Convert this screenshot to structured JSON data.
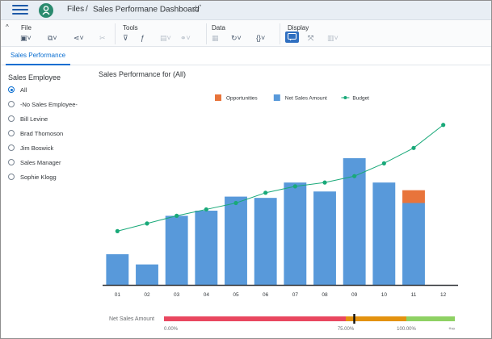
{
  "shell": {
    "breadcrumb_files": "Files",
    "breadcrumb_sep": "/",
    "breadcrumb_doc": "Sales Performane Dashboard",
    "modified_mark": "*"
  },
  "toolbar": {
    "groups": [
      {
        "label": "File"
      },
      {
        "label": "Tools"
      },
      {
        "label": "Data"
      },
      {
        "label": "Display"
      }
    ]
  },
  "tabs": [
    {
      "label": "Sales Performance",
      "active": true
    }
  ],
  "filter": {
    "title": "Sales Employee",
    "options": [
      {
        "label": "All",
        "selected": true
      },
      {
        "label": "-No Sales Employee-",
        "selected": false
      },
      {
        "label": "Bill Levine",
        "selected": false
      },
      {
        "label": "Brad Thomoson",
        "selected": false
      },
      {
        "label": "Jim Boswick",
        "selected": false
      },
      {
        "label": "Sales Manager",
        "selected": false
      },
      {
        "label": "Sophie Klogg",
        "selected": false
      }
    ]
  },
  "chart_data": {
    "type": "bar",
    "title": "Sales Performance for (All)",
    "categories": [
      "01",
      "02",
      "03",
      "04",
      "05",
      "06",
      "07",
      "08",
      "09",
      "10",
      "11",
      "12"
    ],
    "series": [
      {
        "name": "Opportunities",
        "kind": "bar-stack",
        "color": "#e8743b",
        "values": [
          0,
          0,
          0,
          0,
          0,
          0,
          0,
          0,
          0,
          0,
          10,
          0
        ]
      },
      {
        "name": "Net Sales Amount",
        "kind": "bar-stack",
        "color": "#5899da",
        "values": [
          24,
          16,
          54,
          58,
          69,
          68,
          80,
          73,
          99,
          80,
          64,
          0
        ]
      },
      {
        "name": "Budget",
        "kind": "line",
        "color": "#19a979",
        "values": [
          42,
          48,
          54,
          59,
          64,
          72,
          77,
          80,
          85,
          95,
          107,
          125
        ]
      }
    ],
    "ylim": [
      0,
      140
    ],
    "legend_position": "top",
    "grid": false
  },
  "gauge": {
    "label": "Net Sales Amount",
    "ticks": [
      "0.00%",
      "75.00%",
      "100.00%",
      "+∞"
    ],
    "bands": [
      {
        "from": 0,
        "to": 75,
        "color": "#e9475f"
      },
      {
        "from": 75,
        "to": 100,
        "color": "#e3920f"
      },
      {
        "from": 100,
        "to": 120,
        "color": "#8ed163"
      }
    ],
    "value": 78.5,
    "max": 120
  }
}
